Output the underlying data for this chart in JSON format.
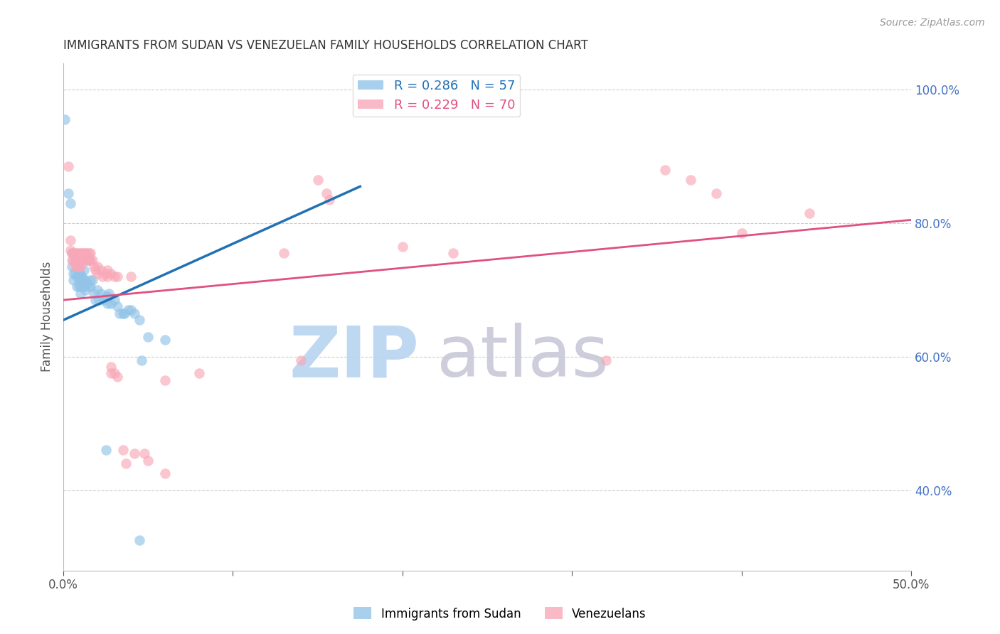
{
  "title": "IMMIGRANTS FROM SUDAN VS VENEZUELAN FAMILY HOUSEHOLDS CORRELATION CHART",
  "source_text": "Source: ZipAtlas.com",
  "ylabel_left": "Family Households",
  "x_min": 0.0,
  "x_max": 0.5,
  "y_min": 0.28,
  "y_max": 1.04,
  "x_ticks": [
    0.0,
    0.1,
    0.2,
    0.3,
    0.4,
    0.5
  ],
  "x_tick_labels": [
    "0.0%",
    "",
    "",
    "",
    "",
    "50.0%"
  ],
  "y_ticks_right": [
    0.4,
    0.6,
    0.8,
    1.0
  ],
  "y_tick_labels_right": [
    "40.0%",
    "60.0%",
    "80.0%",
    "100.0%"
  ],
  "legend_entries": [
    {
      "label": "R = 0.286   N = 57",
      "color": "#93c4e8"
    },
    {
      "label": "R = 0.229   N = 70",
      "color": "#f8a8b8"
    }
  ],
  "sudan_color": "#93c4e8",
  "venezuela_color": "#f8a8b8",
  "sudan_trend_color": "#2171b5",
  "venezuela_trend_color": "#e05080",
  "watermark_zip": "ZIP",
  "watermark_atlas": "atlas",
  "watermark_zip_color": "#b8d4f0",
  "watermark_atlas_color": "#c8c8d8",
  "sudan_points": [
    [
      0.001,
      0.955
    ],
    [
      0.003,
      0.845
    ],
    [
      0.004,
      0.83
    ],
    [
      0.005,
      0.755
    ],
    [
      0.005,
      0.735
    ],
    [
      0.006,
      0.725
    ],
    [
      0.006,
      0.715
    ],
    [
      0.007,
      0.745
    ],
    [
      0.007,
      0.725
    ],
    [
      0.008,
      0.735
    ],
    [
      0.008,
      0.72
    ],
    [
      0.008,
      0.705
    ],
    [
      0.009,
      0.725
    ],
    [
      0.009,
      0.715
    ],
    [
      0.009,
      0.705
    ],
    [
      0.01,
      0.725
    ],
    [
      0.01,
      0.715
    ],
    [
      0.01,
      0.705
    ],
    [
      0.01,
      0.695
    ],
    [
      0.011,
      0.72
    ],
    [
      0.011,
      0.705
    ],
    [
      0.012,
      0.73
    ],
    [
      0.012,
      0.715
    ],
    [
      0.012,
      0.705
    ],
    [
      0.013,
      0.715
    ],
    [
      0.013,
      0.7
    ],
    [
      0.014,
      0.71
    ],
    [
      0.015,
      0.745
    ],
    [
      0.015,
      0.705
    ],
    [
      0.016,
      0.715
    ],
    [
      0.016,
      0.705
    ],
    [
      0.017,
      0.715
    ],
    [
      0.018,
      0.695
    ],
    [
      0.019,
      0.685
    ],
    [
      0.02,
      0.7
    ],
    [
      0.021,
      0.685
    ],
    [
      0.022,
      0.695
    ],
    [
      0.024,
      0.685
    ],
    [
      0.025,
      0.69
    ],
    [
      0.026,
      0.69
    ],
    [
      0.026,
      0.68
    ],
    [
      0.027,
      0.695
    ],
    [
      0.028,
      0.68
    ],
    [
      0.03,
      0.685
    ],
    [
      0.032,
      0.675
    ],
    [
      0.033,
      0.665
    ],
    [
      0.035,
      0.665
    ],
    [
      0.036,
      0.665
    ],
    [
      0.038,
      0.67
    ],
    [
      0.04,
      0.67
    ],
    [
      0.042,
      0.665
    ],
    [
      0.045,
      0.655
    ],
    [
      0.046,
      0.595
    ],
    [
      0.05,
      0.63
    ],
    [
      0.06,
      0.625
    ],
    [
      0.045,
      0.325
    ],
    [
      0.025,
      0.46
    ]
  ],
  "venezuela_points": [
    [
      0.003,
      0.885
    ],
    [
      0.004,
      0.775
    ],
    [
      0.004,
      0.76
    ],
    [
      0.005,
      0.755
    ],
    [
      0.005,
      0.745
    ],
    [
      0.006,
      0.755
    ],
    [
      0.006,
      0.745
    ],
    [
      0.007,
      0.755
    ],
    [
      0.007,
      0.745
    ],
    [
      0.007,
      0.735
    ],
    [
      0.008,
      0.755
    ],
    [
      0.008,
      0.745
    ],
    [
      0.008,
      0.735
    ],
    [
      0.009,
      0.755
    ],
    [
      0.009,
      0.745
    ],
    [
      0.009,
      0.735
    ],
    [
      0.01,
      0.755
    ],
    [
      0.01,
      0.745
    ],
    [
      0.01,
      0.735
    ],
    [
      0.011,
      0.755
    ],
    [
      0.011,
      0.745
    ],
    [
      0.012,
      0.755
    ],
    [
      0.012,
      0.745
    ],
    [
      0.013,
      0.755
    ],
    [
      0.013,
      0.745
    ],
    [
      0.014,
      0.755
    ],
    [
      0.014,
      0.745
    ],
    [
      0.015,
      0.755
    ],
    [
      0.015,
      0.745
    ],
    [
      0.016,
      0.755
    ],
    [
      0.016,
      0.745
    ],
    [
      0.017,
      0.745
    ],
    [
      0.018,
      0.735
    ],
    [
      0.019,
      0.73
    ],
    [
      0.02,
      0.735
    ],
    [
      0.02,
      0.725
    ],
    [
      0.022,
      0.73
    ],
    [
      0.023,
      0.72
    ],
    [
      0.025,
      0.725
    ],
    [
      0.026,
      0.73
    ],
    [
      0.026,
      0.72
    ],
    [
      0.028,
      0.725
    ],
    [
      0.03,
      0.72
    ],
    [
      0.032,
      0.72
    ],
    [
      0.028,
      0.585
    ],
    [
      0.028,
      0.575
    ],
    [
      0.03,
      0.575
    ],
    [
      0.032,
      0.57
    ],
    [
      0.035,
      0.46
    ],
    [
      0.037,
      0.44
    ],
    [
      0.04,
      0.72
    ],
    [
      0.042,
      0.455
    ],
    [
      0.048,
      0.455
    ],
    [
      0.05,
      0.445
    ],
    [
      0.06,
      0.565
    ],
    [
      0.06,
      0.425
    ],
    [
      0.08,
      0.575
    ],
    [
      0.13,
      0.755
    ],
    [
      0.14,
      0.595
    ],
    [
      0.15,
      0.865
    ],
    [
      0.155,
      0.845
    ],
    [
      0.157,
      0.835
    ],
    [
      0.2,
      0.765
    ],
    [
      0.23,
      0.755
    ],
    [
      0.32,
      0.595
    ],
    [
      0.355,
      0.88
    ],
    [
      0.37,
      0.865
    ],
    [
      0.385,
      0.845
    ],
    [
      0.4,
      0.785
    ],
    [
      0.44,
      0.815
    ]
  ],
  "background_color": "#ffffff",
  "grid_color": "#cccccc",
  "title_color": "#333333",
  "right_axis_color": "#4472c4"
}
